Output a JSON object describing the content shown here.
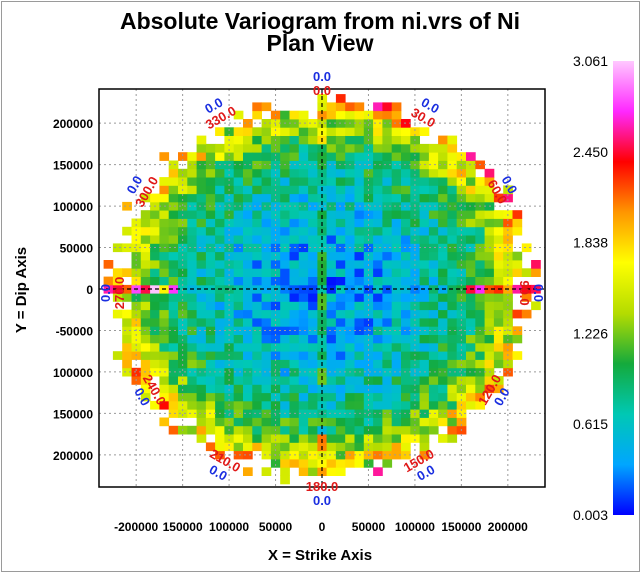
{
  "chart_data": {
    "type": "heatmap",
    "title": "Absolute Variogram from ni.vrs of Ni",
    "subtitle": "Plan View",
    "xlabel": "X = Strike Axis",
    "ylabel": "Y = Dip Axis",
    "x_ticks": [
      "-200000",
      "150000",
      "100000",
      "50000",
      "0",
      "50000",
      "100000",
      "150000",
      "200000"
    ],
    "y_ticks": [
      "200000",
      "150000",
      "100000",
      "50000",
      "0",
      "-50000",
      "100000",
      "150000",
      "200000"
    ],
    "xlim": [
      -240000,
      240000
    ],
    "ylim": [
      -240000,
      240000
    ],
    "grid": true,
    "cell_size": 10000,
    "max_radius": 235000,
    "direction_labels": [
      {
        "azimuth": 0,
        "red": "0.0",
        "blue": "0.0"
      },
      {
        "azimuth": 30,
        "red": "30.0",
        "blue": "0.0"
      },
      {
        "azimuth": 60,
        "red": "60.0",
        "blue": "0.0"
      },
      {
        "azimuth": 90,
        "red": "90.0",
        "blue": "0.0"
      },
      {
        "azimuth": 120,
        "red": "120.0",
        "blue": "0.0"
      },
      {
        "azimuth": 150,
        "red": "150.0",
        "blue": "0.0"
      },
      {
        "azimuth": 180,
        "red": "180.0",
        "blue": "0.0"
      },
      {
        "azimuth": 210,
        "red": "210.0",
        "blue": "0.0"
      },
      {
        "azimuth": 240,
        "red": "240.0",
        "blue": "0.0"
      },
      {
        "azimuth": 270,
        "red": "270.0",
        "blue": "0.0"
      },
      {
        "azimuth": 300,
        "red": "300.0",
        "blue": "0.0"
      },
      {
        "azimuth": 330,
        "red": "330.0",
        "blue": "0.0"
      }
    ],
    "colorbar": {
      "min": 0.003,
      "max": 3.061,
      "ticks": [
        "3.061",
        "2.450",
        "1.838",
        "1.226",
        "0.615",
        "0.003"
      ],
      "colors": [
        "#0000ff",
        "#00a6ff",
        "#00c8b4",
        "#14aa3c",
        "#b4dc00",
        "#ffff00",
        "#ff9600",
        "#ff0000",
        "#ff28ff",
        "#ffc8ff"
      ]
    }
  }
}
